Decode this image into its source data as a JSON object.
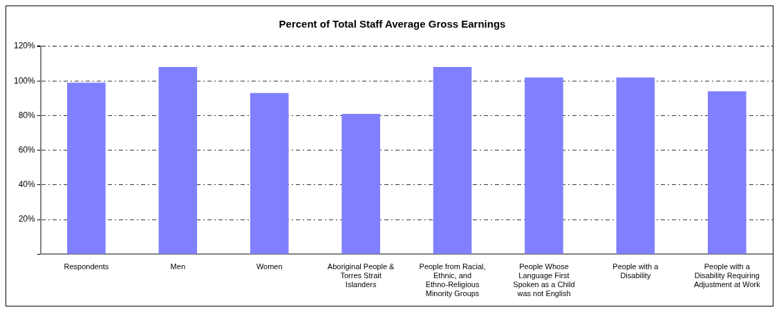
{
  "chart_data": {
    "type": "bar",
    "title": "Percent of Total Staff Average Gross Earnings",
    "categories": [
      "Respondents",
      "Men",
      "Women",
      "Aboriginal People & Torres Strait Islanders",
      "People from Racial, Ethnic, and Ethno-Religious Minority Groups",
      "People Whose Language First Spoken as a Child was not English",
      "People with a Disability",
      "People with a Disability Requiring Adjustment at Work"
    ],
    "values": [
      99,
      108,
      93,
      81,
      108,
      102,
      102,
      94
    ],
    "color": "#8080ff",
    "ylim": [
      0,
      120
    ],
    "yticks": [
      {
        "value": 0,
        "label": null
      },
      {
        "value": 20,
        "label": "20%"
      },
      {
        "value": 40,
        "label": "40%"
      },
      {
        "value": 60,
        "label": "60%"
      },
      {
        "value": 80,
        "label": "80%"
      },
      {
        "value": 100,
        "label": "100%"
      },
      {
        "value": 120,
        "label": "120%"
      }
    ],
    "grid": "y",
    "legend": false
  }
}
